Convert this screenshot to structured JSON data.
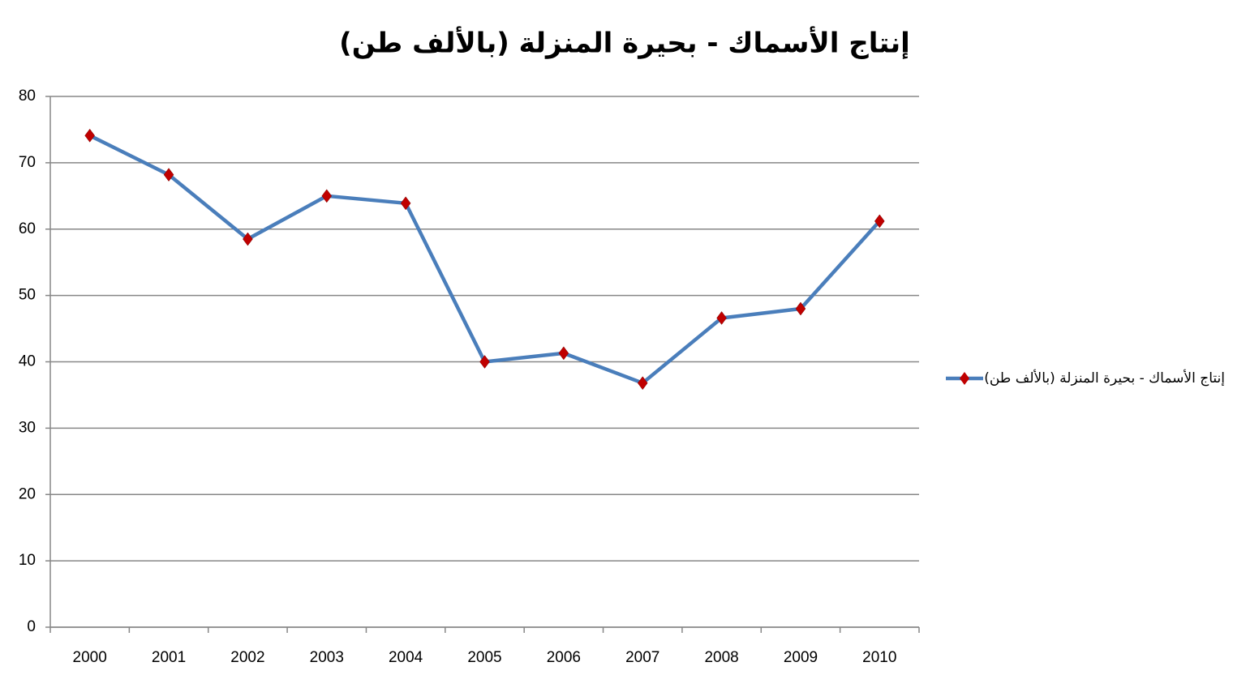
{
  "chart_data": {
    "type": "line",
    "title": "إنتاج الأسماك - بحيرة المنزلة (بالألف طن)",
    "categories": [
      "2000",
      "2001",
      "2002",
      "2003",
      "2004",
      "2005",
      "2006",
      "2007",
      "2008",
      "2009",
      "2010"
    ],
    "series": [
      {
        "name": "إنتاج الأسماك - بحيرة المنزلة (بالألف طن)",
        "color": "#4a7ebb",
        "marker_color": "#c00000",
        "values": [
          74.1,
          68.2,
          58.5,
          65,
          63.9,
          40,
          41.3,
          36.8,
          46.6,
          48,
          61.2
        ]
      }
    ],
    "ylim": [
      0,
      80
    ],
    "yticks": [
      0,
      10,
      20,
      30,
      40,
      50,
      60,
      70,
      80
    ],
    "grid": true,
    "legend": "right"
  }
}
